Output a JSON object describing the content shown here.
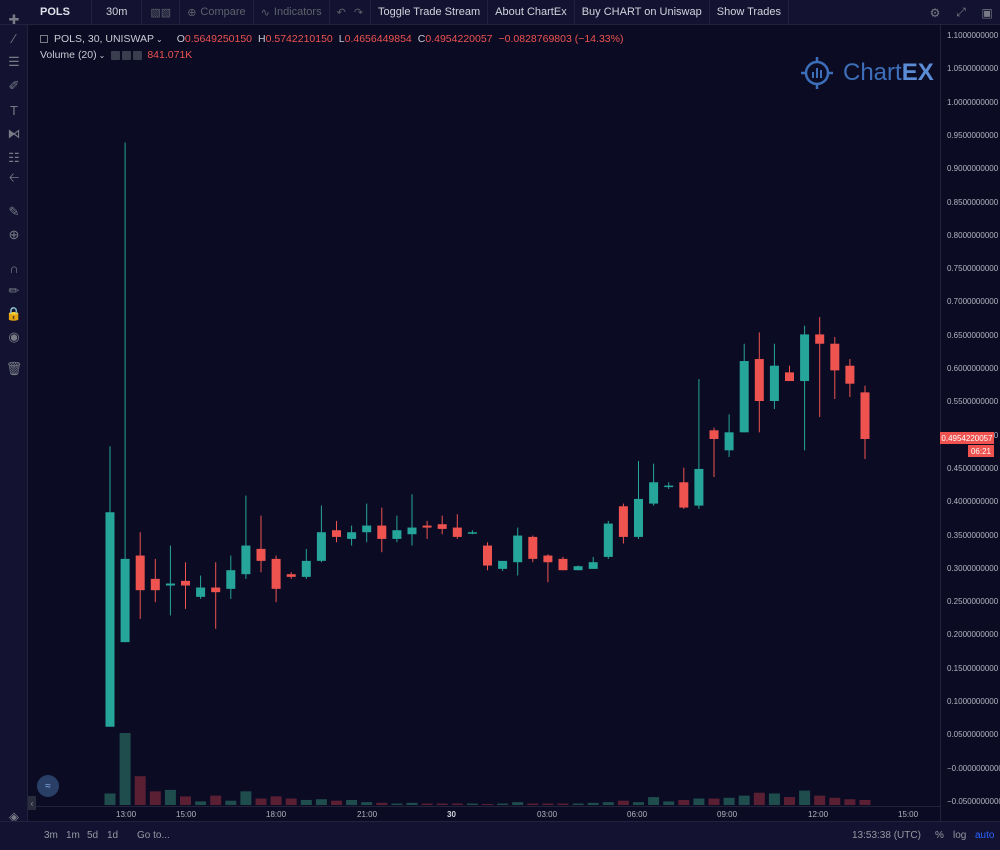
{
  "toolbar": {
    "symbol": "POLS",
    "interval": "30m",
    "compare_label": "Compare",
    "indicators_label": "Indicators",
    "toggle_trade_stream": "Toggle Trade Stream",
    "about_chartex": "About ChartEx",
    "buy_chart": "Buy CHART on Uniswap",
    "show_trades": "Show Trades"
  },
  "legend": {
    "title": "POLS, 30, UNISWAP",
    "o_label": "O",
    "o_value": "0.5649250150",
    "h_label": "H",
    "h_value": "0.5742210150",
    "l_label": "L",
    "l_value": "0.4656449854",
    "c_label": "C",
    "c_value": "0.4954220057",
    "change": "−0.0828769803 (−14.33%)",
    "volume_label": "Volume (20)",
    "volume_value": "841.071K"
  },
  "watermark": {
    "text_a": "Chart",
    "text_b": "EX"
  },
  "price_axis": {
    "labels": [
      "1.1000000000",
      "1.0500000000",
      "1.0000000000",
      "0.9500000000",
      "0.9000000000",
      "0.8500000000",
      "0.8000000000",
      "0.7500000000",
      "0.7000000000",
      "0.6500000000",
      "0.6000000000",
      "0.5500000000",
      "0.5000000000",
      "0.4500000000",
      "0.4000000000",
      "0.3500000000",
      "0.3000000000",
      "0.2500000000",
      "0.2000000000",
      "0.1500000000",
      "0.1000000000",
      "0.0500000000",
      "−0.0000000000",
      "−0.0500000000"
    ],
    "label_values": [
      1.1,
      1.05,
      1.0,
      0.95,
      0.9,
      0.85,
      0.8,
      0.75,
      0.7,
      0.65,
      0.6,
      0.55,
      0.5,
      0.45,
      0.4,
      0.35,
      0.3,
      0.25,
      0.2,
      0.15,
      0.1,
      0.05,
      0.0,
      -0.05
    ],
    "current_price": "0.4954220057",
    "countdown": "06:21"
  },
  "time_axis": {
    "labels": [
      "13:00",
      "15:00",
      "18:00",
      "21:00",
      "30",
      "03:00",
      "06:00",
      "09:00",
      "12:00",
      "15:00"
    ]
  },
  "bottom": {
    "ranges": [
      "3m",
      "1m",
      "5d",
      "1d"
    ],
    "goto": "Go to...",
    "clock": "13:53:38 (UTC)",
    "percent": "%",
    "log": "log",
    "auto": "auto"
  },
  "colors": {
    "up": "#26a69a",
    "down": "#ef5350",
    "background": "#0b0b24",
    "panel": "#131331"
  },
  "chart_data": {
    "type": "candlestick",
    "interval": "30",
    "exchange": "UNISWAP",
    "symbol": "POLS",
    "ylim": [
      -0.05,
      1.1
    ],
    "candles": [
      {
        "o": 0.063,
        "h": 0.484,
        "l": 0.063,
        "c": 0.385
      },
      {
        "o": 0.19,
        "h": 0.94,
        "l": 0.19,
        "c": 0.315
      },
      {
        "o": 0.32,
        "h": 0.355,
        "l": 0.225,
        "c": 0.268
      },
      {
        "o": 0.285,
        "h": 0.315,
        "l": 0.25,
        "c": 0.268
      },
      {
        "o": 0.275,
        "h": 0.335,
        "l": 0.23,
        "c": 0.278
      },
      {
        "o": 0.282,
        "h": 0.31,
        "l": 0.24,
        "c": 0.275
      },
      {
        "o": 0.258,
        "h": 0.29,
        "l": 0.255,
        "c": 0.272
      },
      {
        "o": 0.272,
        "h": 0.31,
        "l": 0.21,
        "c": 0.265
      },
      {
        "o": 0.27,
        "h": 0.32,
        "l": 0.255,
        "c": 0.298
      },
      {
        "o": 0.292,
        "h": 0.41,
        "l": 0.285,
        "c": 0.335
      },
      {
        "o": 0.33,
        "h": 0.38,
        "l": 0.295,
        "c": 0.312
      },
      {
        "o": 0.315,
        "h": 0.32,
        "l": 0.25,
        "c": 0.27
      },
      {
        "o": 0.292,
        "h": 0.295,
        "l": 0.285,
        "c": 0.288
      },
      {
        "o": 0.288,
        "h": 0.33,
        "l": 0.285,
        "c": 0.312
      },
      {
        "o": 0.312,
        "h": 0.395,
        "l": 0.31,
        "c": 0.355
      },
      {
        "o": 0.358,
        "h": 0.372,
        "l": 0.34,
        "c": 0.348
      },
      {
        "o": 0.345,
        "h": 0.365,
        "l": 0.335,
        "c": 0.355
      },
      {
        "o": 0.355,
        "h": 0.398,
        "l": 0.34,
        "c": 0.365
      },
      {
        "o": 0.365,
        "h": 0.392,
        "l": 0.325,
        "c": 0.345
      },
      {
        "o": 0.345,
        "h": 0.38,
        "l": 0.34,
        "c": 0.358
      },
      {
        "o": 0.352,
        "h": 0.412,
        "l": 0.335,
        "c": 0.362
      },
      {
        "o": 0.365,
        "h": 0.372,
        "l": 0.345,
        "c": 0.362
      },
      {
        "o": 0.367,
        "h": 0.38,
        "l": 0.352,
        "c": 0.36
      },
      {
        "o": 0.362,
        "h": 0.382,
        "l": 0.345,
        "c": 0.348
      },
      {
        "o": 0.355,
        "h": 0.358,
        "l": 0.352,
        "c": 0.355
      },
      {
        "o": 0.335,
        "h": 0.34,
        "l": 0.298,
        "c": 0.305
      },
      {
        "o": 0.3,
        "h": 0.31,
        "l": 0.297,
        "c": 0.312
      },
      {
        "o": 0.31,
        "h": 0.362,
        "l": 0.29,
        "c": 0.35
      },
      {
        "o": 0.348,
        "h": 0.35,
        "l": 0.31,
        "c": 0.315
      },
      {
        "o": 0.32,
        "h": 0.322,
        "l": 0.28,
        "c": 0.31
      },
      {
        "o": 0.315,
        "h": 0.318,
        "l": 0.298,
        "c": 0.298
      },
      {
        "o": 0.298,
        "h": 0.305,
        "l": 0.298,
        "c": 0.304
      },
      {
        "o": 0.3,
        "h": 0.318,
        "l": 0.3,
        "c": 0.31
      },
      {
        "o": 0.318,
        "h": 0.372,
        "l": 0.315,
        "c": 0.368
      },
      {
        "o": 0.394,
        "h": 0.398,
        "l": 0.338,
        "c": 0.348
      },
      {
        "o": 0.348,
        "h": 0.462,
        "l": 0.345,
        "c": 0.405
      },
      {
        "o": 0.398,
        "h": 0.458,
        "l": 0.395,
        "c": 0.43
      },
      {
        "o": 0.425,
        "h": 0.43,
        "l": 0.42,
        "c": 0.425
      },
      {
        "o": 0.43,
        "h": 0.452,
        "l": 0.39,
        "c": 0.392
      },
      {
        "o": 0.395,
        "h": 0.585,
        "l": 0.39,
        "c": 0.45
      },
      {
        "o": 0.508,
        "h": 0.512,
        "l": 0.438,
        "c": 0.495
      },
      {
        "o": 0.478,
        "h": 0.532,
        "l": 0.468,
        "c": 0.505
      },
      {
        "o": 0.505,
        "h": 0.638,
        "l": 0.505,
        "c": 0.612
      },
      {
        "o": 0.615,
        "h": 0.655,
        "l": 0.505,
        "c": 0.552
      },
      {
        "o": 0.552,
        "h": 0.638,
        "l": 0.54,
        "c": 0.605
      },
      {
        "o": 0.595,
        "h": 0.605,
        "l": 0.585,
        "c": 0.582
      },
      {
        "o": 0.582,
        "h": 0.665,
        "l": 0.478,
        "c": 0.652
      },
      {
        "o": 0.652,
        "h": 0.678,
        "l": 0.528,
        "c": 0.638
      },
      {
        "o": 0.638,
        "h": 0.648,
        "l": 0.555,
        "c": 0.598
      },
      {
        "o": 0.605,
        "h": 0.615,
        "l": 0.558,
        "c": 0.578
      },
      {
        "o": 0.565,
        "h": 0.575,
        "l": 0.465,
        "c": 0.495
      }
    ],
    "volume": {
      "name": "Volume (20)",
      "last": "841.071K",
      "values": [
        0.16,
        1.0,
        0.4,
        0.19,
        0.21,
        0.12,
        0.05,
        0.13,
        0.06,
        0.19,
        0.09,
        0.12,
        0.09,
        0.07,
        0.08,
        0.06,
        0.07,
        0.04,
        0.03,
        0.02,
        0.03,
        0.02,
        0.02,
        0.02,
        0.02,
        0.01,
        0.02,
        0.04,
        0.02,
        0.02,
        0.02,
        0.02,
        0.03,
        0.04,
        0.06,
        0.04,
        0.11,
        0.05,
        0.07,
        0.09,
        0.09,
        0.1,
        0.13,
        0.17,
        0.16,
        0.11,
        0.2,
        0.13,
        0.1,
        0.08,
        0.07
      ]
    }
  }
}
